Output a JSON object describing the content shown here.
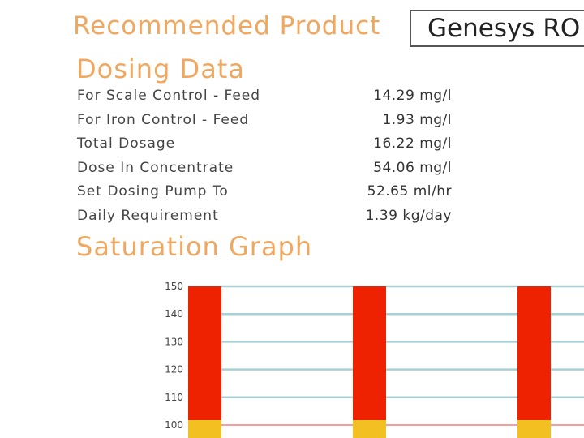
{
  "product": {
    "label": "Recommended Product",
    "value": "Genesys RO"
  },
  "dosing": {
    "heading": "Dosing Data",
    "rows": [
      {
        "label": "For Scale Control - Feed",
        "value": "14.29 mg/l"
      },
      {
        "label": "For Iron Control - Feed",
        "value": "1.93 mg/l"
      },
      {
        "label": "Total Dosage",
        "value": "16.22 mg/l"
      },
      {
        "label": "Dose In Concentrate",
        "value": "54.06 mg/l"
      },
      {
        "label": "Set Dosing Pump To",
        "value": "52.65 ml/hr"
      },
      {
        "label": "Daily Requirement",
        "value": "1.39 kg/day"
      }
    ]
  },
  "saturation": {
    "heading": "Saturation Graph"
  },
  "colors": {
    "accent": "#f0a860",
    "bar_high": "#ee2200",
    "bar_low": "#f2c020",
    "gridline": "#a8d0d4",
    "limit_line": "#f0a0a0"
  },
  "chart_data": {
    "type": "bar",
    "categories": [
      "",
      "",
      ""
    ],
    "series": [
      {
        "values": [
          150,
          150,
          150
        ]
      }
    ],
    "yticks": [
      100,
      110,
      120,
      130,
      140,
      150
    ],
    "ylim": [
      95,
      152
    ],
    "limit_line": 100,
    "grid": true,
    "title": "",
    "xlabel": "",
    "ylabel": ""
  }
}
